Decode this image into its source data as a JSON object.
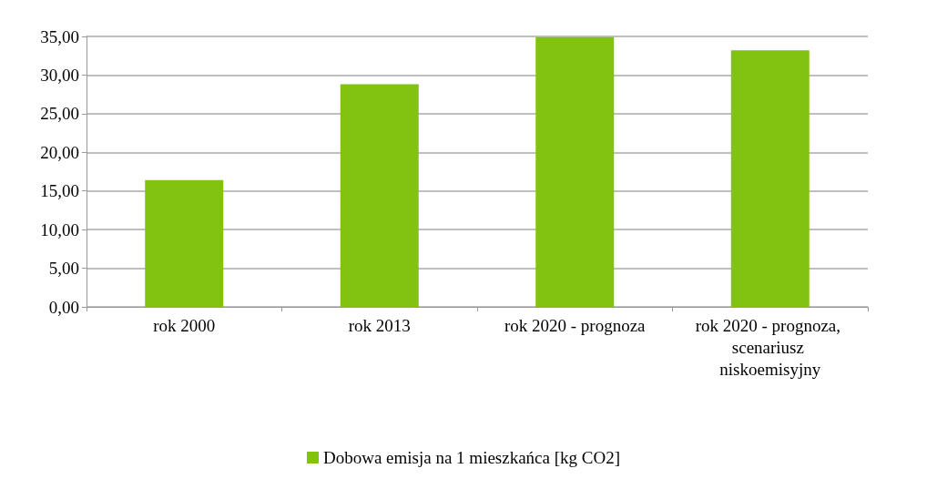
{
  "chart_data": {
    "type": "bar",
    "categories": [
      "rok 2000",
      "rok 2013",
      "rok 2020 - prognoza",
      "rok 2020 - prognoza, scenariusz niskoemisyjny"
    ],
    "series": [
      {
        "name": "Dobowa emisja na 1 mieszkańca [kg CO2]",
        "color": "#82c210",
        "values": [
          16.4,
          28.8,
          34.9,
          33.2
        ]
      }
    ],
    "ylim": [
      0,
      35
    ],
    "yticks": [
      {
        "value": 0,
        "label": "0,00"
      },
      {
        "value": 5,
        "label": "5,00"
      },
      {
        "value": 10,
        "label": "10,00"
      },
      {
        "value": 15,
        "label": "15,00"
      },
      {
        "value": 20,
        "label": "20,00"
      },
      {
        "value": 25,
        "label": "25,00"
      },
      {
        "value": 30,
        "label": "30,00"
      },
      {
        "value": 35,
        "label": "35,00"
      }
    ],
    "grid": "y",
    "legend": "bottom"
  }
}
